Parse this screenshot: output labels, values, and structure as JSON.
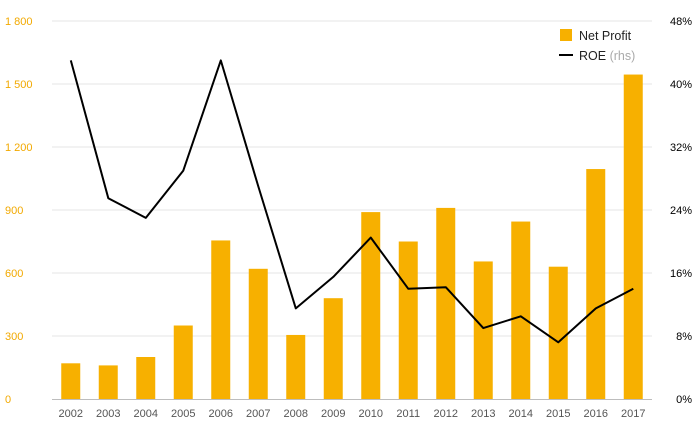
{
  "chart_data": {
    "type": "bar",
    "categories": [
      "2002",
      "2003",
      "2004",
      "2005",
      "2006",
      "2007",
      "2008",
      "2009",
      "2010",
      "2011",
      "2012",
      "2013",
      "2014",
      "2015",
      "2016",
      "2017"
    ],
    "series": [
      {
        "name": "Net Profit",
        "type": "bar",
        "axis": "left",
        "color": "#f7b000",
        "values": [
          170,
          160,
          200,
          350,
          755,
          620,
          305,
          480,
          890,
          750,
          910,
          655,
          845,
          630,
          1095,
          1545
        ]
      },
      {
        "name": "ROE",
        "type": "line",
        "axis": "right",
        "color": "#000000",
        "values": [
          43,
          25.5,
          23,
          29,
          43,
          27,
          11.5,
          15.5,
          20.5,
          14,
          14.2,
          9,
          10.5,
          7.2,
          11.5,
          14
        ]
      }
    ],
    "y_left": {
      "ylim": [
        0,
        1800
      ],
      "ticks": [
        0,
        300,
        600,
        900,
        1200,
        1500,
        1800
      ],
      "tick_labels": [
        "0",
        "300",
        "600",
        "900",
        "1 200",
        "1 500",
        "1 800"
      ],
      "color": "#f2a900"
    },
    "y_right": {
      "ylim": [
        0,
        48
      ],
      "ticks": [
        0,
        8,
        16,
        24,
        32,
        40,
        48
      ],
      "tick_labels": [
        "0%",
        "8%",
        "16%",
        "24%",
        "32%",
        "40%",
        "48%"
      ],
      "color": "#000000"
    },
    "grid": true,
    "legend": {
      "placement": "top-right",
      "items": [
        {
          "label": "Net Profit",
          "note": "",
          "color": "#f7b000",
          "marker": "square"
        },
        {
          "label": "ROE",
          "note": "(rhs)",
          "color": "#000000",
          "marker": "line"
        }
      ]
    }
  }
}
